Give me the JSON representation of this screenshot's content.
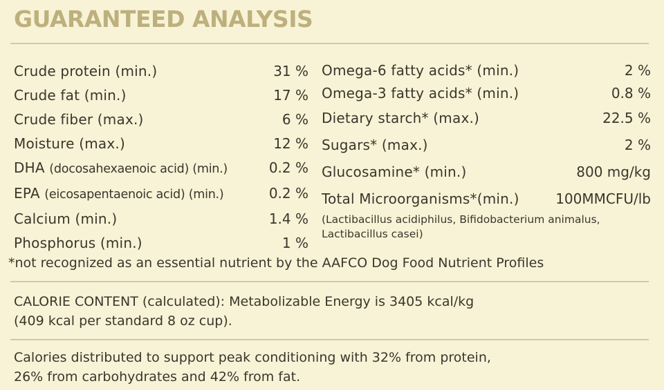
{
  "title": "GUARANTEED ANALYSIS",
  "left_rows": [
    {
      "label": "Crude protein (min.)",
      "value": "31 %"
    },
    {
      "label": "Crude fat (min.)",
      "value": "17 %"
    },
    {
      "label": "Crude fiber (max.)",
      "value": "6 %"
    },
    {
      "label": "Moisture (max.)",
      "value": "12 %"
    },
    {
      "label": "DHA",
      "label_detail": "(docosahexaenoic acid) (min.)",
      "value": "0.2 %"
    },
    {
      "label": "EPA",
      "label_detail": "(eicosapentaenoic acid) (min.)",
      "value": "0.2 %"
    },
    {
      "label": "Calcium (min.)",
      "value": "1.4 %"
    },
    {
      "label": "Phosphorus (min.)",
      "value": "1 %"
    }
  ],
  "right_rows": [
    {
      "label": "Omega-6 fatty acids* (min.)",
      "value": "2 %"
    },
    {
      "label": "Omega-3 fatty acids* (min.)",
      "value": "0.8 %"
    },
    {
      "label": "Dietary starch* (max.)",
      "value": "22.5 %"
    },
    {
      "label": "Sugars* (max.)",
      "value": "2 %"
    },
    {
      "label": "Glucosamine* (min.)",
      "value": "800 mg/kg"
    },
    {
      "label": "Total Microorganisms*(min.)",
      "value": "100MMCFU/lb"
    }
  ],
  "microorganisms_note_line1": "(Lactibacillus acidiphilus, Bifidobacterium animalus,",
  "microorganisms_note_line2": "Lactibacillus casei)",
  "footnote": "*not recognized as an essential nutrient by the AAFCO Dog Food Nutrient Profiles",
  "calorie_line1": "CALORIE CONTENT (calculated): Metabolizable Energy is 3405 kcal/kg",
  "calorie_line2": "(409 kcal per standard 8 oz cup).",
  "distribution_line1": "Calories distributed to support peak conditioning with 32% from protein,",
  "distribution_line2": "26% from carbohydrates and 42% from fat."
}
